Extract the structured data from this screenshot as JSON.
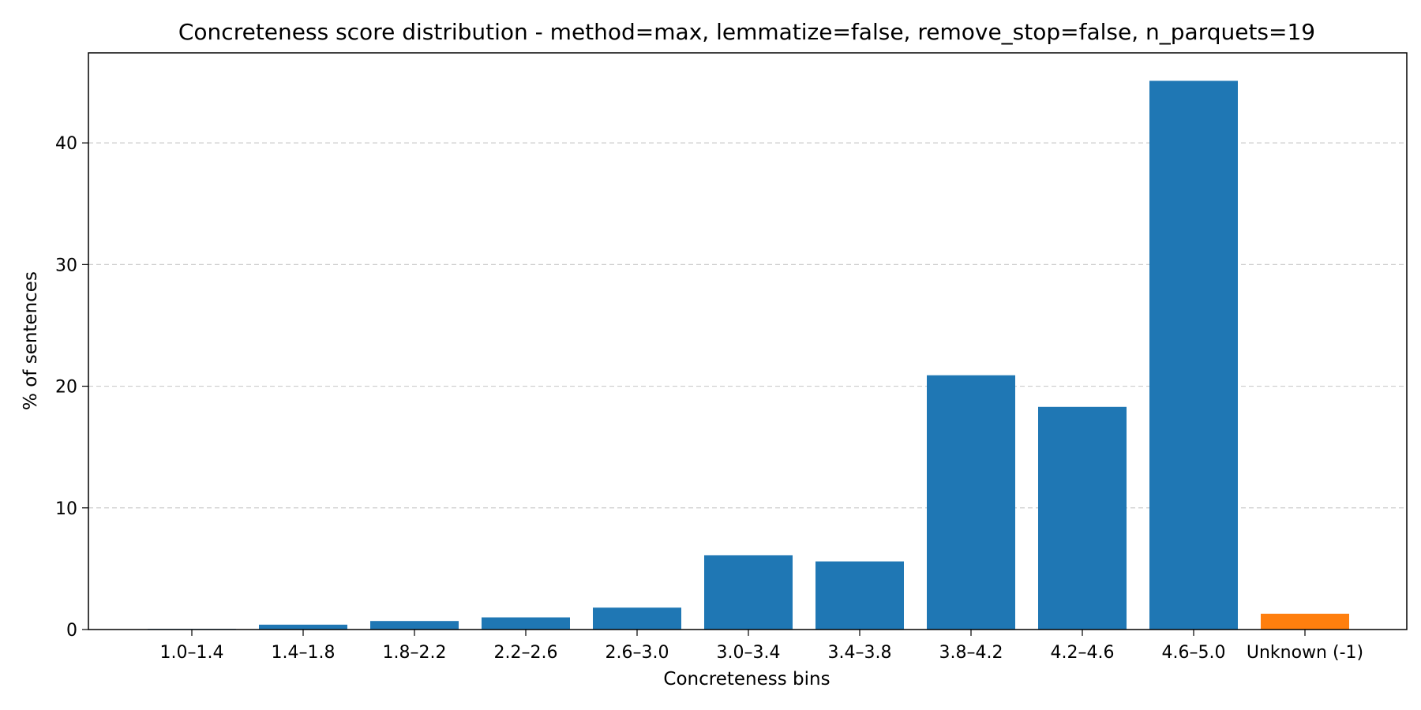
{
  "chart_data": {
    "type": "bar",
    "title": "Concreteness score distribution - method=max, lemmatize=false, remove_stop=false, n_parquets=19",
    "xlabel": "Concreteness bins",
    "ylabel": "% of sentences",
    "categories": [
      "1.0–1.4",
      "1.4–1.8",
      "1.8–2.2",
      "2.2–2.6",
      "2.6–3.0",
      "3.0–3.4",
      "3.4–3.8",
      "3.8–4.2",
      "4.2–4.6",
      "4.6–5.0",
      "Unknown (-1)"
    ],
    "values": [
      0.05,
      0.4,
      0.7,
      1.0,
      1.8,
      6.1,
      5.6,
      20.9,
      18.3,
      45.1,
      1.3
    ],
    "bar_colors": [
      "#1f77b4",
      "#1f77b4",
      "#1f77b4",
      "#1f77b4",
      "#1f77b4",
      "#1f77b4",
      "#1f77b4",
      "#1f77b4",
      "#1f77b4",
      "#1f77b4",
      "#ff7f0e"
    ],
    "ylim": [
      0,
      47.4
    ],
    "yticks": [
      0,
      10,
      20,
      30,
      40
    ],
    "grid": "y-dashed",
    "legend": "none"
  }
}
